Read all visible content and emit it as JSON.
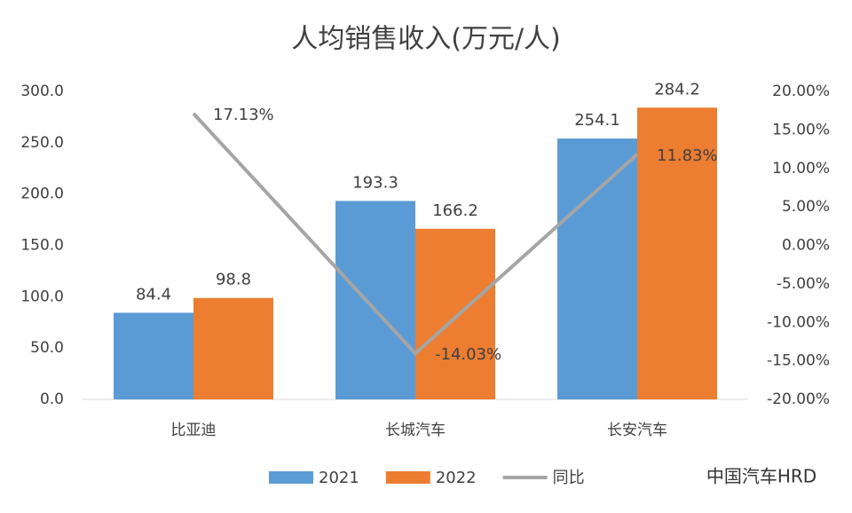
{
  "chart_data": {
    "type": "bar",
    "title": "人均销售收入(万元/人)",
    "categories": [
      "比亚迪",
      "长城汽车",
      "长安汽车"
    ],
    "series": [
      {
        "name": "2021",
        "color": "#5b9bd5",
        "values": [
          84.4,
          193.3,
          254.1
        ]
      },
      {
        "name": "2022",
        "color": "#ed7d31",
        "values": [
          98.8,
          166.2,
          284.2
        ]
      },
      {
        "name": "同比",
        "type": "line",
        "axis": "y2",
        "color": "#a5a5a5",
        "values": [
          17.13,
          -14.03,
          11.83
        ],
        "value_labels": [
          "17.13%",
          "-14.03%",
          "11.83%"
        ]
      }
    ],
    "ylim": [
      0,
      300
    ],
    "yticks": [
      {
        "value": 0,
        "label": "0.0"
      },
      {
        "value": 50,
        "label": "50.0"
      },
      {
        "value": 100,
        "label": "100.0"
      },
      {
        "value": 150,
        "label": "150.0"
      },
      {
        "value": 200,
        "label": "200.0"
      },
      {
        "value": 250,
        "label": "250.0"
      },
      {
        "value": 300,
        "label": "300.0"
      }
    ],
    "y2lim": [
      -20,
      20
    ],
    "y2ticks": [
      {
        "value": -20,
        "label": "-20.00%"
      },
      {
        "value": -15,
        "label": "-15.00%"
      },
      {
        "value": -10,
        "label": "-10.00%"
      },
      {
        "value": -5,
        "label": "-5.00%"
      },
      {
        "value": 0,
        "label": "0.00%"
      },
      {
        "value": 5,
        "label": "5.00%"
      },
      {
        "value": 10,
        "label": "10.00%"
      },
      {
        "value": 15,
        "label": "15.00%"
      },
      {
        "value": 20,
        "label": "20.00%"
      }
    ],
    "grid": false,
    "legend": "bottom",
    "watermark": "中国汽车HRD"
  }
}
